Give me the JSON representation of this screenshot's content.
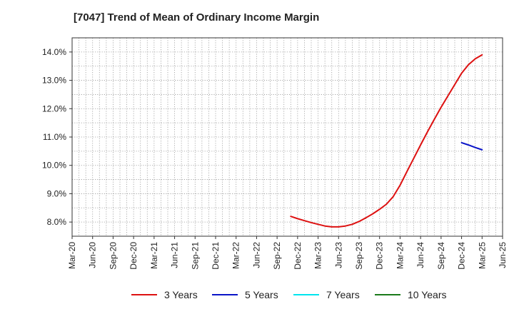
{
  "chart_data": {
    "type": "line",
    "title": "[7047]  Trend of Mean of Ordinary Income Margin",
    "xlabel": "",
    "ylabel": "",
    "x_ticks": [
      "Mar-20",
      "Jun-20",
      "Sep-20",
      "Dec-20",
      "Mar-21",
      "Jun-21",
      "Sep-21",
      "Dec-21",
      "Mar-22",
      "Jun-22",
      "Sep-22",
      "Dec-22",
      "Mar-23",
      "Jun-23",
      "Sep-23",
      "Dec-23",
      "Mar-24",
      "Jun-24",
      "Sep-24",
      "Dec-24",
      "Mar-25",
      "Jun-25"
    ],
    "y_ticks": [
      "8.0%",
      "9.0%",
      "10.0%",
      "11.0%",
      "12.0%",
      "13.0%",
      "14.0%"
    ],
    "ylim": [
      7.5,
      14.5
    ],
    "y_unit": "%",
    "grid": true,
    "legend_position": "bottom",
    "series": [
      {
        "name": "3 Years",
        "color": "#dd1111",
        "points": [
          [
            "Nov-22",
            8.2
          ],
          [
            "Dec-22",
            8.12
          ],
          [
            "Jan-23",
            8.05
          ],
          [
            "Feb-23",
            7.98
          ],
          [
            "Mar-23",
            7.92
          ],
          [
            "Apr-23",
            7.86
          ],
          [
            "May-23",
            7.83
          ],
          [
            "Jun-23",
            7.83
          ],
          [
            "Jul-23",
            7.86
          ],
          [
            "Aug-23",
            7.92
          ],
          [
            "Sep-23",
            8.02
          ],
          [
            "Oct-23",
            8.15
          ],
          [
            "Nov-23",
            8.29
          ],
          [
            "Dec-23",
            8.45
          ],
          [
            "Jan-24",
            8.63
          ],
          [
            "Feb-24",
            8.9
          ],
          [
            "Mar-24",
            9.3
          ],
          [
            "Apr-24",
            9.78
          ],
          [
            "May-24",
            10.25
          ],
          [
            "Jun-24",
            10.72
          ],
          [
            "Jul-24",
            11.18
          ],
          [
            "Aug-24",
            11.62
          ],
          [
            "Sep-24",
            12.05
          ],
          [
            "Oct-24",
            12.45
          ],
          [
            "Nov-24",
            12.85
          ],
          [
            "Dec-24",
            13.25
          ],
          [
            "Jan-25",
            13.55
          ],
          [
            "Feb-25",
            13.76
          ],
          [
            "Mar-25",
            13.9
          ]
        ]
      },
      {
        "name": "5 Years",
        "color": "#0a14c8",
        "points": [
          [
            "Dec-24",
            10.8
          ],
          [
            "Jan-25",
            10.72
          ],
          [
            "Feb-25",
            10.63
          ],
          [
            "Mar-25",
            10.55
          ]
        ]
      },
      {
        "name": "7 Years",
        "color": "#00e5ee",
        "points": []
      },
      {
        "name": "10 Years",
        "color": "#1a7a1a",
        "points": []
      }
    ]
  }
}
